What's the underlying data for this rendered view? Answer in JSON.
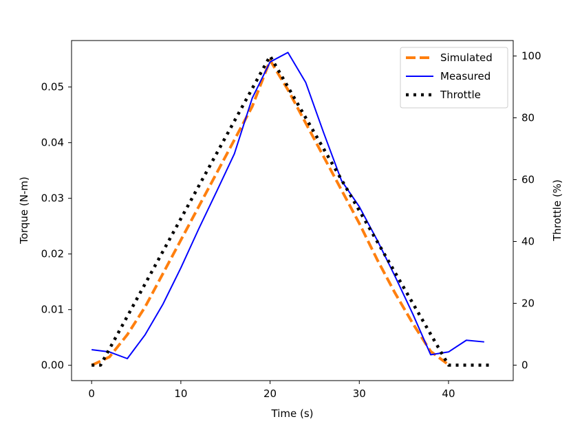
{
  "chart_data": {
    "type": "line",
    "title": "",
    "xlabel": "Time (s)",
    "ylabel": "Torque (N-m)",
    "y2label": "Throttle (%)",
    "xlim": [
      -2.25,
      47.25
    ],
    "ylim": [
      -0.00275,
      0.05835
    ],
    "y2lim": [
      -5,
      105
    ],
    "xticks": [
      0,
      10,
      20,
      30,
      40
    ],
    "xtick_labels": [
      "0",
      "10",
      "20",
      "30",
      "40"
    ],
    "yticks": [
      0.0,
      0.01,
      0.02,
      0.03,
      0.04,
      0.05
    ],
    "ytick_labels": [
      "0.00",
      "0.01",
      "0.02",
      "0.03",
      "0.04",
      "0.05"
    ],
    "y2ticks": [
      0,
      20,
      40,
      60,
      80,
      100
    ],
    "y2tick_labels": [
      "0",
      "20",
      "40",
      "60",
      "80",
      "100"
    ],
    "grid": false,
    "legend_position": "top-right",
    "series": [
      {
        "name": "Simulated",
        "axis": "left",
        "color": "#ff7f0e",
        "style": "dashed",
        "x": [
          0,
          2,
          4,
          6,
          8,
          10,
          12,
          14,
          16,
          18,
          20,
          22,
          24,
          26,
          28,
          30,
          32,
          34,
          36,
          38,
          40
        ],
        "y": [
          0.0,
          0.0015,
          0.0055,
          0.0105,
          0.0165,
          0.0225,
          0.0285,
          0.0345,
          0.0405,
          0.0465,
          0.0548,
          0.0495,
          0.0435,
          0.0375,
          0.0315,
          0.0255,
          0.019,
          0.013,
          0.0075,
          0.0025,
          0.0001
        ]
      },
      {
        "name": "Measured",
        "axis": "left",
        "color": "#0000ff",
        "style": "solid",
        "x": [
          0,
          2,
          4,
          6,
          8,
          10,
          12,
          14,
          16,
          18,
          20,
          22,
          24,
          26,
          28,
          30,
          32,
          34,
          36,
          38,
          40,
          42,
          44
        ],
        "y": [
          0.0028,
          0.0024,
          0.0012,
          0.0055,
          0.011,
          0.0175,
          0.0245,
          0.0312,
          0.038,
          0.048,
          0.0545,
          0.0562,
          0.0508,
          0.0418,
          0.0332,
          0.0285,
          0.0225,
          0.016,
          0.0092,
          0.0019,
          0.0024,
          0.0045,
          0.0042
        ]
      },
      {
        "name": "Throttle",
        "axis": "right",
        "color": "#000000",
        "style": "dotted",
        "x": [
          0,
          1,
          20,
          40,
          41,
          45
        ],
        "y": [
          0,
          0,
          100,
          0,
          0,
          0
        ]
      }
    ]
  }
}
